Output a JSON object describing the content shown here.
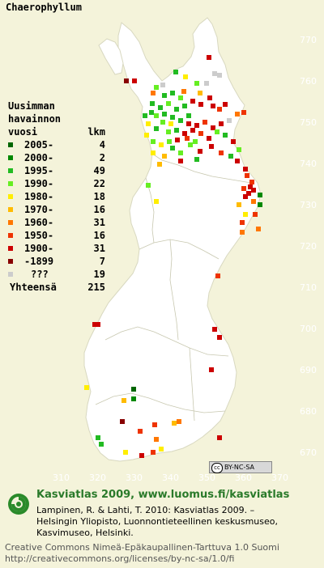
{
  "title": "Chaerophyllum",
  "legend": {
    "heading": [
      "Uusimman",
      "havainnon"
    ],
    "col_year": "vuosi",
    "col_count": "lkm",
    "rows": [
      {
        "label": "2005-",
        "count": "4",
        "color": "#006600"
      },
      {
        "label": "2000-",
        "count": "2",
        "color": "#008800"
      },
      {
        "label": "1995-",
        "count": "49",
        "color": "#22bb22"
      },
      {
        "label": "1990-",
        "count": "22",
        "color": "#66ee22"
      },
      {
        "label": "1980-",
        "count": "18",
        "color": "#ffee00"
      },
      {
        "label": "1970-",
        "count": "16",
        "color": "#ffbb00"
      },
      {
        "label": "1960-",
        "count": "31",
        "color": "#ff7700"
      },
      {
        "label": "1950-",
        "count": "16",
        "color": "#ee3300"
      },
      {
        "label": "1900-",
        "count": "31",
        "color": "#cc0000"
      },
      {
        "label": "-1899",
        "count": "7",
        "color": "#880000"
      },
      {
        "label": "???",
        "count": "19",
        "color": "#cccccc"
      }
    ],
    "total_label": "Yhteensä",
    "total_count": "215"
  },
  "y_ticks": [
    "770",
    "760",
    "750",
    "740",
    "730",
    "720",
    "710",
    "700",
    "690",
    "680",
    "670"
  ],
  "x_ticks": [
    "310",
    "320",
    "330",
    "340",
    "350",
    "360",
    "370"
  ],
  "badge": {
    "cc": "cc",
    "text": "BY-NC-SA"
  },
  "footer": {
    "headline": "Kasviatlas 2009, www.luomus.fi/kasviatlas",
    "citation_1": "Lampinen, R. & Lahti, T. 2010: Kasviatlas 2009. –",
    "citation_2": "Helsingin Yliopisto, Luonnontieteellinen keskusmuseo,",
    "citation_3": "Kasvimuseo, Helsinki.",
    "license_1": "Creative Commons Nimeä-Epäkaupallinen-Tarttuva 1.0 Suomi",
    "license_2": "http://creativecommons.org/licenses/by-nc-sa/1.0/fi"
  },
  "colors": {
    "background": "#f4f3da",
    "land": "#ffffff",
    "border": "#c8c8b0",
    "footer_head": "#2a7a2a"
  }
}
